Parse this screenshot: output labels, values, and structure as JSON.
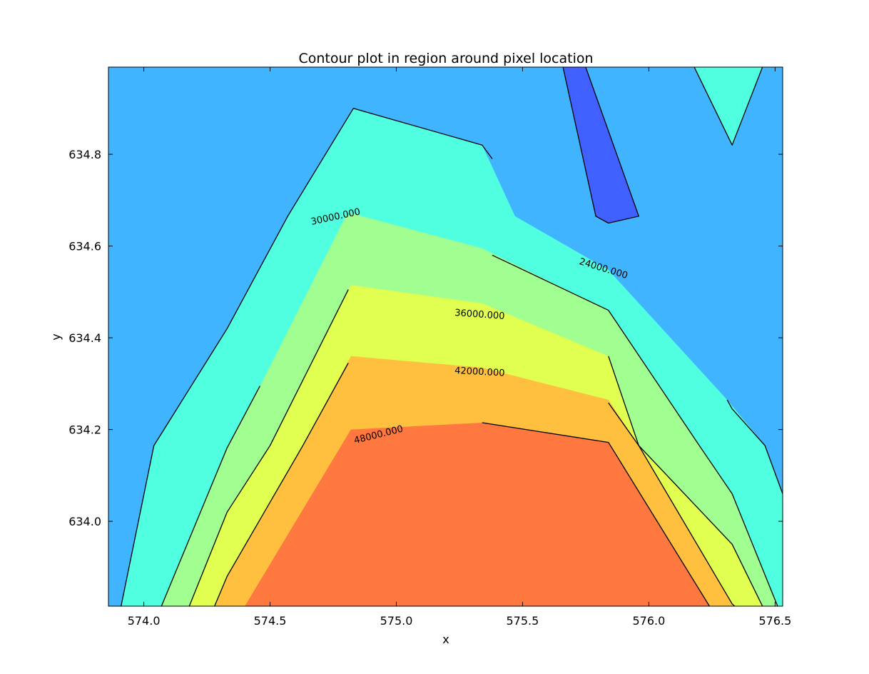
{
  "chart_data": {
    "type": "contour",
    "title": "Contour plot in region around pixel location",
    "xlabel": "x",
    "ylabel": "y",
    "xlim": [
      573.86,
      576.53
    ],
    "ylim": [
      633.815,
      634.99
    ],
    "xticks": [
      "574.0",
      "574.5",
      "575.0",
      "575.5",
      "576.0",
      "576.5"
    ],
    "xtick_values": [
      574.0,
      574.5,
      575.0,
      575.5,
      576.0,
      576.5
    ],
    "yticks": [
      "634.0",
      "634.2",
      "634.4",
      "634.6",
      "634.8"
    ],
    "ytick_values": [
      634.0,
      634.2,
      634.4,
      634.6,
      634.8
    ],
    "grid": false,
    "colormap": "jet",
    "filled_bands": [
      {
        "color": "#40b4ff",
        "polygon": [
          [
            573.86,
            633.815
          ],
          [
            573.86,
            634.99
          ],
          [
            576.53,
            634.99
          ],
          [
            576.53,
            633.815
          ]
        ]
      },
      {
        "color": "#50ffe0",
        "polygon": [
          [
            573.91,
            633.815
          ],
          [
            574.04,
            634.165
          ],
          [
            574.33,
            634.42
          ],
          [
            574.57,
            634.665
          ],
          [
            574.83,
            634.9
          ],
          [
            575.34,
            634.82
          ],
          [
            575.47,
            634.665
          ],
          [
            575.84,
            634.548
          ],
          [
            576.31,
            634.265
          ],
          [
            576.46,
            634.165
          ],
          [
            576.53,
            634.06
          ],
          [
            576.53,
            633.815
          ]
        ]
      },
      {
        "color": "#50ffe0",
        "polygon": [
          [
            576.18,
            634.99
          ],
          [
            576.45,
            634.99
          ],
          [
            576.33,
            634.82
          ]
        ]
      },
      {
        "color": "#4060ff",
        "polygon": [
          [
            575.66,
            634.99
          ],
          [
            575.75,
            634.99
          ],
          [
            575.96,
            634.665
          ],
          [
            575.84,
            634.65
          ],
          [
            575.79,
            634.665
          ]
        ]
      },
      {
        "color": "#a0ff90",
        "polygon": [
          [
            574.07,
            633.815
          ],
          [
            574.33,
            634.16
          ],
          [
            574.46,
            634.295
          ],
          [
            574.8,
            634.665
          ],
          [
            574.83,
            634.67
          ],
          [
            575.34,
            634.595
          ],
          [
            575.84,
            634.46
          ],
          [
            576.2,
            634.165
          ],
          [
            576.33,
            634.06
          ],
          [
            576.51,
            633.815
          ]
        ]
      },
      {
        "color": "#e0ff50",
        "polygon": [
          [
            574.18,
            633.815
          ],
          [
            574.33,
            634.02
          ],
          [
            574.5,
            634.165
          ],
          [
            574.82,
            634.515
          ],
          [
            575.34,
            634.475
          ],
          [
            575.84,
            634.36
          ],
          [
            575.96,
            634.165
          ],
          [
            576.33,
            633.95
          ],
          [
            576.45,
            633.815
          ]
        ]
      },
      {
        "color": "#ffc040",
        "polygon": [
          [
            574.28,
            633.815
          ],
          [
            574.33,
            633.88
          ],
          [
            574.63,
            634.165
          ],
          [
            574.82,
            634.36
          ],
          [
            575.34,
            634.335
          ],
          [
            575.84,
            634.265
          ],
          [
            575.96,
            634.165
          ],
          [
            576.33,
            633.82
          ],
          [
            576.34,
            633.815
          ]
        ]
      },
      {
        "color": "#ff7840",
        "polygon": [
          [
            574.4,
            633.815
          ],
          [
            574.82,
            634.2
          ],
          [
            575.34,
            634.215
          ],
          [
            575.84,
            634.172
          ],
          [
            576.24,
            633.815
          ]
        ]
      }
    ],
    "contour_lines": [
      {
        "level": "24000.000",
        "points": [
          [
            573.91,
            633.815
          ],
          [
            574.04,
            634.165
          ],
          [
            574.33,
            634.42
          ],
          [
            574.57,
            634.665
          ],
          [
            574.83,
            634.9
          ],
          [
            575.34,
            634.82
          ],
          [
            575.38,
            634.79
          ]
        ]
      },
      {
        "level": "24000.000",
        "points": [
          [
            576.31,
            634.265
          ],
          [
            576.33,
            634.245
          ],
          [
            576.46,
            634.165
          ],
          [
            576.53,
            634.06
          ]
        ]
      },
      {
        "level": "24000.000",
        "points": [
          [
            576.18,
            634.99
          ],
          [
            576.33,
            634.82
          ],
          [
            576.45,
            634.99
          ]
        ]
      },
      {
        "level": "24000.000",
        "points": [
          [
            575.66,
            634.99
          ],
          [
            575.79,
            634.665
          ],
          [
            575.84,
            634.65
          ],
          [
            575.96,
            634.665
          ],
          [
            575.75,
            634.99
          ]
        ]
      },
      {
        "level": "30000.000",
        "points": [
          [
            574.07,
            633.815
          ],
          [
            574.33,
            634.16
          ],
          [
            574.46,
            634.295
          ]
        ]
      },
      {
        "level": "30000.000",
        "points": [
          [
            575.38,
            634.58
          ],
          [
            575.84,
            634.46
          ],
          [
            576.2,
            634.165
          ],
          [
            576.33,
            634.06
          ],
          [
            576.51,
            633.815
          ]
        ]
      },
      {
        "level": "36000.000",
        "points": [
          [
            574.18,
            633.815
          ],
          [
            574.33,
            634.02
          ],
          [
            574.5,
            634.165
          ],
          [
            574.81,
            634.505
          ]
        ]
      },
      {
        "level": "36000.000",
        "points": [
          [
            575.84,
            634.36
          ],
          [
            575.96,
            634.165
          ],
          [
            576.33,
            633.95
          ],
          [
            576.45,
            633.815
          ]
        ]
      },
      {
        "level": "42000.000",
        "points": [
          [
            574.28,
            633.815
          ],
          [
            574.33,
            633.88
          ],
          [
            574.63,
            634.165
          ],
          [
            574.81,
            634.345
          ]
        ]
      },
      {
        "level": "42000.000",
        "points": [
          [
            575.84,
            634.258
          ],
          [
            575.96,
            634.165
          ],
          [
            576.33,
            633.82
          ],
          [
            576.34,
            633.815
          ]
        ]
      },
      {
        "level": "48000.000",
        "points": [
          [
            575.34,
            634.215
          ],
          [
            575.84,
            634.172
          ],
          [
            576.24,
            633.815
          ]
        ]
      }
    ],
    "contour_labels": [
      {
        "text": "30000.000",
        "x": 574.76,
        "y": 634.663,
        "angle": -12
      },
      {
        "text": "24000.000",
        "x": 575.82,
        "y": 634.55,
        "angle": 17
      },
      {
        "text": "36000.000",
        "x": 575.33,
        "y": 634.45,
        "angle": 4
      },
      {
        "text": "42000.000",
        "x": 575.33,
        "y": 634.325,
        "angle": 3
      },
      {
        "text": "48000.000",
        "x": 574.93,
        "y": 634.188,
        "angle": -14
      }
    ]
  }
}
